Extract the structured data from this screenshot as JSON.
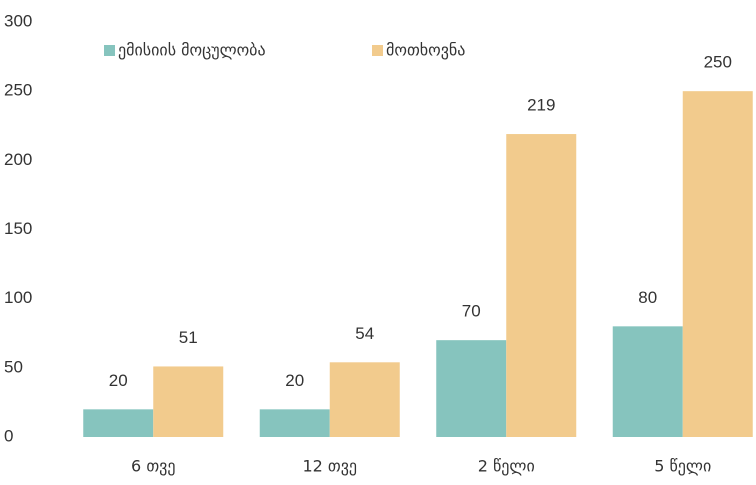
{
  "chart_data": {
    "type": "bar",
    "categories": [
      "6 თვე",
      "12 თვე",
      "2 წელი",
      "5 წელი"
    ],
    "series": [
      {
        "name": "ემისიის მოცულობა",
        "color": "#86c4be",
        "values": [
          20,
          20,
          70,
          80
        ]
      },
      {
        "name": "მოთხოვნა",
        "color": "#f2cb8d",
        "values": [
          51,
          54,
          219,
          250
        ]
      }
    ],
    "ylim": [
      0,
      300
    ],
    "yticks": [
      0,
      50,
      100,
      150,
      200,
      250,
      300
    ],
    "grid": false,
    "legend": "top",
    "data_labels": true
  }
}
